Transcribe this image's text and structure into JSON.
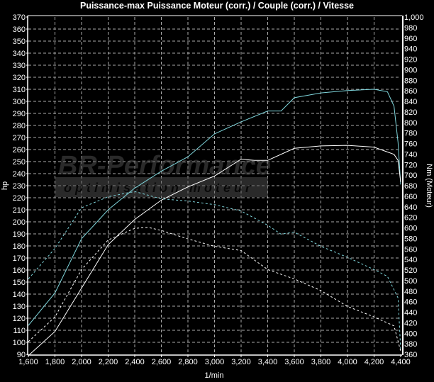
{
  "chart_data": {
    "type": "line",
    "title": "Puissance-max Puissance Moteur (corr.) / Couple (corr.) / Vitesse",
    "xlabel": "1/min",
    "ylabel": "hp",
    "y2label": "Nm (Moteur)",
    "xlim": [
      1600,
      4400
    ],
    "ylim": [
      90,
      370
    ],
    "y2lim": [
      360,
      1000
    ],
    "grid": true,
    "background": "#000000",
    "x_ticks": [
      "1,600",
      "1,800",
      "2,000",
      "2,200",
      "2,400",
      "2,600",
      "2,800",
      "3,000",
      "3,200",
      "3,400",
      "3,600",
      "3,800",
      "4,000",
      "4,200",
      "4,400"
    ],
    "y_ticks": [
      "90",
      "100",
      "110",
      "120",
      "130",
      "140",
      "150",
      "160",
      "170",
      "180",
      "190",
      "200",
      "210",
      "220",
      "230",
      "240",
      "250",
      "260",
      "270",
      "280",
      "290",
      "300",
      "310",
      "320",
      "330",
      "340",
      "350",
      "360",
      "370"
    ],
    "y2_ticks": [
      "360",
      "380",
      "400",
      "420",
      "440",
      "460",
      "480",
      "500",
      "520",
      "540",
      "560",
      "580",
      "600",
      "620",
      "640",
      "660",
      "680",
      "700",
      "720",
      "740",
      "760",
      "780",
      "800",
      "820",
      "840",
      "860",
      "880",
      "900",
      "920",
      "940",
      "960",
      "980",
      "1,000"
    ],
    "series": [
      {
        "axis": "left",
        "color": "#7fd6dc",
        "style": "solid",
        "x": [
          1600,
          1800,
          2000,
          2200,
          2400,
          2600,
          2800,
          3000,
          3200,
          3400,
          3500,
          3600,
          3800,
          4000,
          4200,
          4300,
          4350,
          4380,
          4400
        ],
        "values": [
          114,
          141,
          186,
          210,
          228,
          242,
          254,
          273,
          283,
          292,
          292,
          303,
          307,
          309,
          310,
          308,
          296,
          266,
          231
        ]
      },
      {
        "axis": "left",
        "color": "#ffffff",
        "style": "solid",
        "x": [
          1600,
          1800,
          2000,
          2200,
          2400,
          2600,
          2800,
          3000,
          3200,
          3300,
          3400,
          3600,
          3800,
          4000,
          4200,
          4350,
          4380,
          4400
        ],
        "values": [
          89,
          109,
          145,
          181,
          202,
          218,
          229,
          238,
          252,
          251,
          251,
          261,
          263,
          263.5,
          262,
          256,
          251,
          233
        ]
      },
      {
        "axis": "right",
        "color": "#7fd6dc",
        "style": "dashed",
        "x": [
          1600,
          1800,
          2000,
          2200,
          2400,
          2600,
          2800,
          3000,
          3200,
          3400,
          3500,
          3600,
          3800,
          4000,
          4200,
          4300,
          4380,
          4400
        ],
        "values": [
          503,
          561,
          638,
          659,
          669,
          655,
          651,
          644,
          632,
          605,
          588,
          592,
          565,
          544,
          521,
          508,
          467,
          369
        ]
      },
      {
        "axis": "right",
        "color": "#ffffff",
        "style": "dashed",
        "x": [
          1600,
          1800,
          2000,
          2200,
          2400,
          2500,
          2600,
          2800,
          3000,
          3200,
          3400,
          3600,
          3800,
          4000,
          4200,
          4350,
          4400
        ],
        "values": [
          384,
          431,
          521,
          577,
          599,
          601,
          595,
          579,
          565,
          557,
          521,
          503,
          481,
          451,
          431,
          414,
          366
        ]
      }
    ]
  },
  "watermark": {
    "brand": "BR-Performance",
    "tagline": "optimisation moteur"
  }
}
